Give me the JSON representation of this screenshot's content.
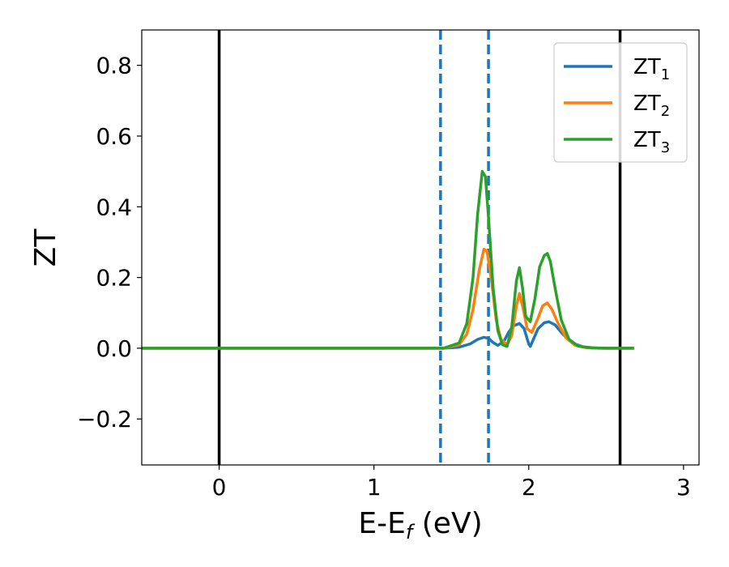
{
  "chart_data": {
    "type": "line",
    "xlabel_main": "E-E",
    "xlabel_sub": "f",
    "xlabel_unit": " (eV)",
    "ylabel": "ZT",
    "xlim": [
      -0.5,
      3.1
    ],
    "ylim": [
      -0.33,
      0.9
    ],
    "xticks": [
      0,
      1,
      2,
      3
    ],
    "xtick_labels": [
      "0",
      "1",
      "2",
      "3"
    ],
    "yticks": [
      -0.2,
      0.0,
      0.2,
      0.4,
      0.6,
      0.8
    ],
    "ytick_labels": [
      "−0.2",
      "0.0",
      "0.2",
      "0.4",
      "0.6",
      "0.8"
    ],
    "grid": false,
    "legend_position": "top-right",
    "vlines": [
      {
        "x": 0.0,
        "style": "solid",
        "color": "#000000"
      },
      {
        "x": 2.59,
        "style": "solid",
        "color": "#000000"
      },
      {
        "x": 1.43,
        "style": "dashed",
        "color": "#1f77b4"
      },
      {
        "x": 1.74,
        "style": "dashed",
        "color": "#1f77b4"
      }
    ],
    "series": [
      {
        "name": "ZT",
        "sub": "1",
        "color": "#1f77b4",
        "x": [
          -0.5,
          1.45,
          1.55,
          1.62,
          1.67,
          1.71,
          1.74,
          1.77,
          1.8,
          1.84,
          1.87,
          1.9,
          1.94,
          1.97,
          2.0,
          2.01,
          2.03,
          2.06,
          2.1,
          2.13,
          2.17,
          2.22,
          2.28,
          2.35,
          2.45,
          2.68
        ],
        "y": [
          0.0,
          0.0,
          0.003,
          0.012,
          0.025,
          0.031,
          0.028,
          0.016,
          0.008,
          0.02,
          0.045,
          0.063,
          0.07,
          0.056,
          0.012,
          0.005,
          0.025,
          0.055,
          0.072,
          0.075,
          0.066,
          0.04,
          0.015,
          0.004,
          0.0,
          0.0
        ]
      },
      {
        "name": "ZT",
        "sub": "2",
        "color": "#ff7f0e",
        "x": [
          -0.5,
          1.45,
          1.55,
          1.6,
          1.64,
          1.68,
          1.71,
          1.73,
          1.76,
          1.79,
          1.82,
          1.86,
          1.89,
          1.92,
          1.94,
          1.96,
          1.99,
          2.02,
          2.06,
          2.09,
          2.12,
          2.15,
          2.19,
          2.24,
          2.3,
          2.37,
          2.47,
          2.68
        ],
        "y": [
          0.0,
          0.0,
          0.01,
          0.04,
          0.11,
          0.22,
          0.28,
          0.275,
          0.19,
          0.08,
          0.025,
          0.01,
          0.035,
          0.12,
          0.155,
          0.12,
          0.055,
          0.045,
          0.085,
          0.12,
          0.128,
          0.11,
          0.07,
          0.03,
          0.008,
          0.002,
          0.0,
          0.0
        ]
      },
      {
        "name": "ZT",
        "sub": "3",
        "color": "#2ca02c",
        "x": [
          -0.5,
          1.45,
          1.55,
          1.6,
          1.64,
          1.67,
          1.7,
          1.72,
          1.74,
          1.77,
          1.8,
          1.83,
          1.86,
          1.89,
          1.92,
          1.94,
          1.96,
          1.98,
          2.01,
          2.04,
          2.07,
          2.1,
          2.12,
          2.14,
          2.17,
          2.21,
          2.26,
          2.32,
          2.4,
          2.5,
          2.68
        ],
        "y": [
          0.0,
          0.0,
          0.015,
          0.07,
          0.2,
          0.38,
          0.5,
          0.485,
          0.37,
          0.17,
          0.05,
          0.01,
          0.005,
          0.06,
          0.19,
          0.228,
          0.17,
          0.09,
          0.075,
          0.14,
          0.23,
          0.262,
          0.268,
          0.245,
          0.17,
          0.08,
          0.025,
          0.006,
          0.001,
          0.0,
          0.0
        ]
      }
    ]
  }
}
